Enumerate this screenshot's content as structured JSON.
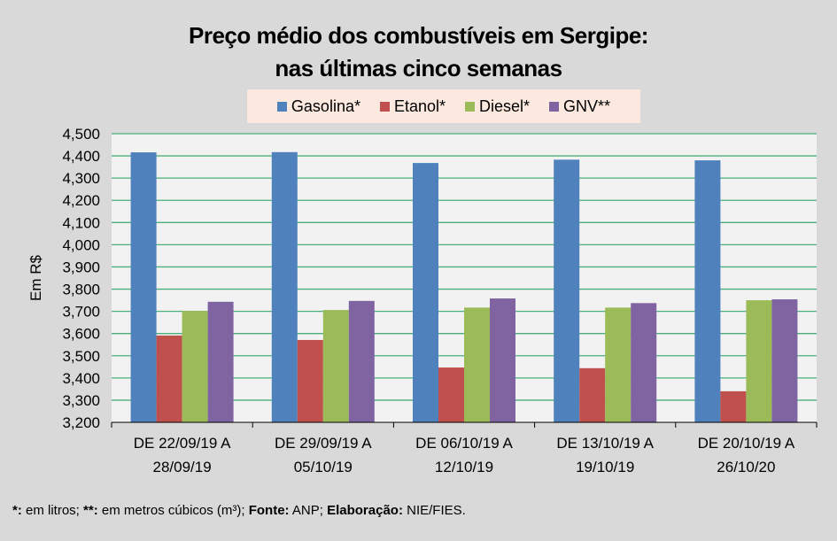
{
  "chart_data": {
    "type": "bar",
    "title": [
      "Preço médio dos combustíveis em Sergipe:",
      "nas últimas cinco semanas"
    ],
    "xlabel": "",
    "ylabel": "Em R$",
    "ylim": [
      3.2,
      4.5
    ],
    "y_ticks": [
      "3,200",
      "3,300",
      "3,400",
      "3,500",
      "3,600",
      "3,700",
      "3,800",
      "3,900",
      "4,000",
      "4,100",
      "4,200",
      "4,300",
      "4,400",
      "4,500"
    ],
    "y_tick_values": [
      3.2,
      3.3,
      3.4,
      3.5,
      3.6,
      3.7,
      3.8,
      3.9,
      4.0,
      4.1,
      4.2,
      4.3,
      4.4,
      4.5
    ],
    "grid": true,
    "legend_position": "top-center",
    "categories": [
      [
        "DE 22/09/19 A",
        "28/09/19"
      ],
      [
        "DE 29/09/19 A",
        "05/10/19"
      ],
      [
        "DE 06/10/19 A",
        "12/10/19"
      ],
      [
        "DE 13/10/19 A",
        "19/10/19"
      ],
      [
        "DE 20/10/19 A",
        "26/10/20"
      ]
    ],
    "series": [
      {
        "name": "Gasolina*",
        "color": "#4f81bd",
        "values": [
          4.416,
          4.417,
          4.368,
          4.383,
          4.38
        ]
      },
      {
        "name": "Etanol*",
        "color": "#c0504d",
        "values": [
          3.591,
          3.571,
          3.447,
          3.444,
          3.34
        ]
      },
      {
        "name": "Diesel*",
        "color": "#9bbb59",
        "values": [
          3.702,
          3.706,
          3.717,
          3.717,
          3.75
        ]
      },
      {
        "name": "GNV**",
        "color": "#8064a2",
        "values": [
          3.743,
          3.747,
          3.758,
          3.737,
          3.754
        ]
      }
    ]
  },
  "footnote": {
    "p1_bold": "*:",
    "p1": " em litros; ",
    "p2_bold": "**:",
    "p2": " em metros cúbicos (m³); ",
    "p3_bold": "Fonte:",
    "p3": " ANP; ",
    "p4_bold": "Elaboração:",
    "p4": " NIE/FIES."
  },
  "colors": {
    "plot_background": "#f2f2f2",
    "page_background": "#d9d9d9",
    "gridline": "#4aaf7a",
    "legend_background": "#fbe9df"
  }
}
